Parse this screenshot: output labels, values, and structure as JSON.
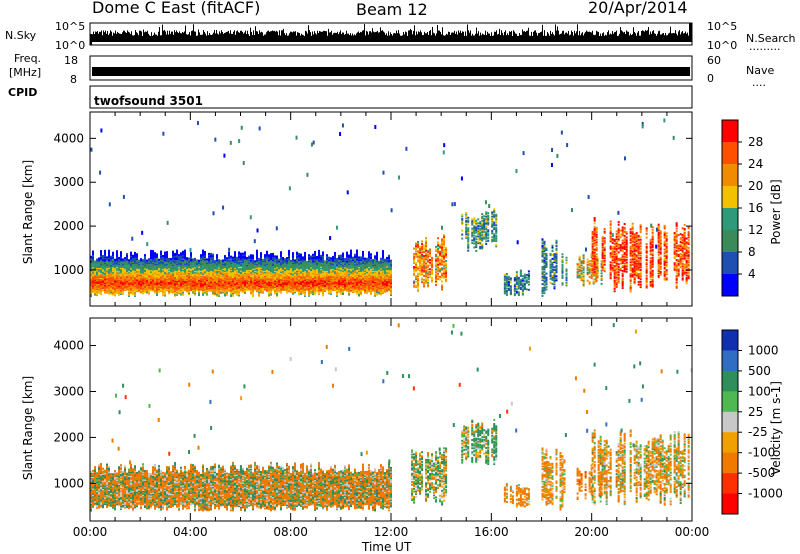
{
  "header": {
    "station": "Dome C East (fitACF)",
    "beam": "Beam 12",
    "date": "20/Apr/2014"
  },
  "top_panels": {
    "nsky_label": "N.Sky",
    "nsky_ticks": [
      "10^5",
      "10^0"
    ],
    "nsearch_label": "N.Search",
    "nsearch_ticks": [
      "10^5",
      "10^0"
    ],
    "freq_label": "Freq.",
    "freq_unit": "[MHz]",
    "freq_ticks": [
      "18",
      "8"
    ],
    "nave_label": "Nave",
    "nave_ticks": [
      "60",
      "0"
    ],
    "cpid_label": "CPID",
    "cpid_value": "twofsound 3501"
  },
  "colors": {
    "power": [
      "#0000ff",
      "#1f4fb0",
      "#3a8a5a",
      "#2f9a7a",
      "#f2c200",
      "#f08c00",
      "#ff5000",
      "#ff0000"
    ],
    "velocity": [
      "#1030b0",
      "#2f6ec0",
      "#2f8f5a",
      "#4fb850",
      "#c8c8c8",
      "#f0a000",
      "#f07a00",
      "#ff3000",
      "#ff0000"
    ]
  },
  "chart_data": [
    {
      "type": "heatmap",
      "title": "",
      "xlabel": "",
      "ylabel": "Slant Range [km]",
      "xlim_hours": [
        0,
        24
      ],
      "ylim_km": [
        180,
        4600
      ],
      "yticks": [
        1000,
        2000,
        3000,
        4000
      ],
      "colorbar": {
        "label": "Power [dB]",
        "ticks": [
          "28",
          "24",
          "20",
          "16",
          "12",
          "8",
          "4"
        ],
        "range": [
          0,
          32
        ]
      },
      "main_echo_band": {
        "from_h": 0,
        "to_h": 12,
        "range_km": [
          400,
          1400
        ],
        "peak_km": 700,
        "value_db": 28
      },
      "echo_regions": [
        {
          "from_h": 12.8,
          "to_h": 14.2,
          "range_km": [
            500,
            1800
          ],
          "value_db": 22
        },
        {
          "from_h": 14.8,
          "to_h": 16.2,
          "range_km": [
            1400,
            2400
          ],
          "value_db": 12
        },
        {
          "from_h": 16.5,
          "to_h": 17.5,
          "range_km": [
            400,
            1000
          ],
          "value_db": 10
        },
        {
          "from_h": 18,
          "to_h": 19,
          "range_km": [
            400,
            1800
          ],
          "value_db": 10
        },
        {
          "from_h": 19.4,
          "to_h": 20.4,
          "range_km": [
            600,
            1400
          ],
          "value_db": 18
        },
        {
          "from_h": 20,
          "to_h": 23.9,
          "range_km": [
            500,
            2200
          ],
          "value_db": 26
        }
      ]
    },
    {
      "type": "heatmap",
      "title": "",
      "xlabel": "Time UT",
      "ylabel": "Slant Range [km]",
      "xlim_hours": [
        0,
        24
      ],
      "ylim_km": [
        180,
        4600
      ],
      "xticks": [
        "00:00",
        "04:00",
        "08:00",
        "12:00",
        "16:00",
        "20:00",
        "00:00"
      ],
      "yticks": [
        1000,
        2000,
        3000,
        4000
      ],
      "colorbar": {
        "label": "Velocity [m s-1]",
        "ticks": [
          "1000",
          "500",
          "100",
          "25",
          "-25",
          "-100",
          "-500",
          "-1000"
        ],
        "range": [
          -1000,
          1000
        ]
      },
      "main_echo_band": {
        "from_h": 0,
        "to_h": 12,
        "range_km": [
          400,
          1400
        ],
        "velocity_ms": -150
      },
      "echo_regions": [
        {
          "from_h": 12.8,
          "to_h": 14.2,
          "range_km": [
            500,
            1800
          ],
          "velocity_ms": 50
        },
        {
          "from_h": 14.8,
          "to_h": 16.2,
          "range_km": [
            1400,
            2400
          ],
          "velocity_ms": 100
        },
        {
          "from_h": 16.5,
          "to_h": 17.5,
          "range_km": [
            400,
            1000
          ],
          "velocity_ms": -200
        },
        {
          "from_h": 18,
          "to_h": 19,
          "range_km": [
            400,
            1800
          ],
          "velocity_ms": -150
        },
        {
          "from_h": 19.4,
          "to_h": 20.4,
          "range_km": [
            600,
            1400
          ],
          "velocity_ms": -300
        },
        {
          "from_h": 20,
          "to_h": 23.9,
          "range_km": [
            500,
            2200
          ],
          "velocity_ms": -100
        }
      ]
    }
  ]
}
